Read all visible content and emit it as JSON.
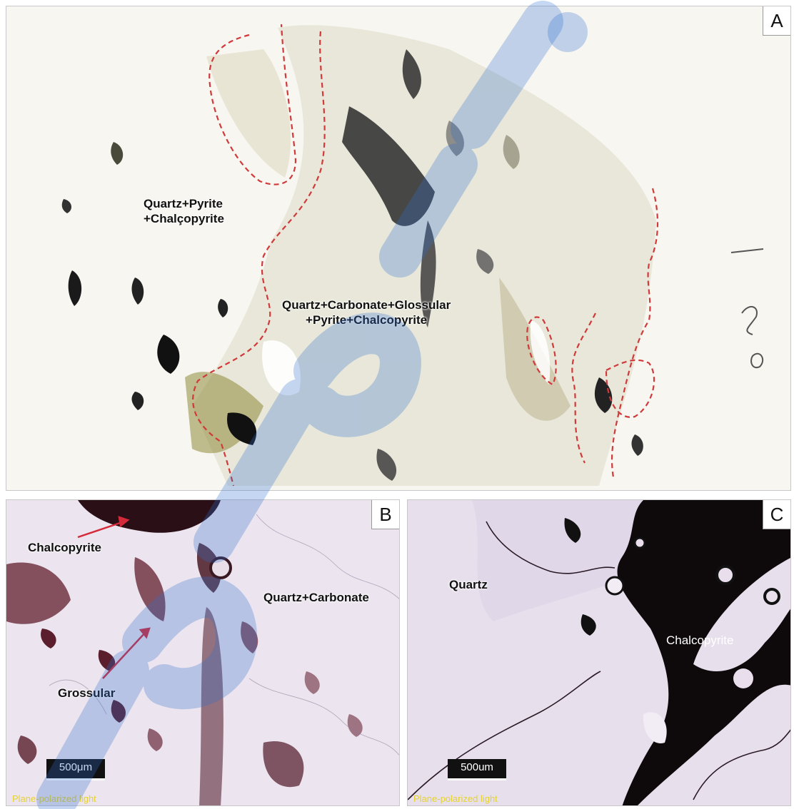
{
  "panels": {
    "a": {
      "letter": "A",
      "labels": {
        "quartz_pyrite_1": "Quartz+Pyrite",
        "quartz_pyrite_2": "+Chalçopyrite",
        "mixed_1": "Quartz+Carbonate+Glossular",
        "mixed_2": "+Pyrite+Chalcopyrite"
      }
    },
    "b": {
      "letter": "B",
      "labels": {
        "chalcopyrite": "Chalcopyrite",
        "quartz_carbonate": "Quartz+Carbonate",
        "grossular": "Grossular"
      },
      "scale_bar": "500μm",
      "light_mode": "Plane-polarized light"
    },
    "c": {
      "letter": "C",
      "labels": {
        "quartz": "Quartz",
        "chalcopyrite": "Chalcopyrite"
      },
      "scale_bar": "500um",
      "light_mode": "Plane-polarized light"
    }
  },
  "colors": {
    "boundary": "#d03a3a",
    "arrow": "#d42a3a",
    "watermark": "#2f6fd0",
    "caption": "#e6d232"
  }
}
